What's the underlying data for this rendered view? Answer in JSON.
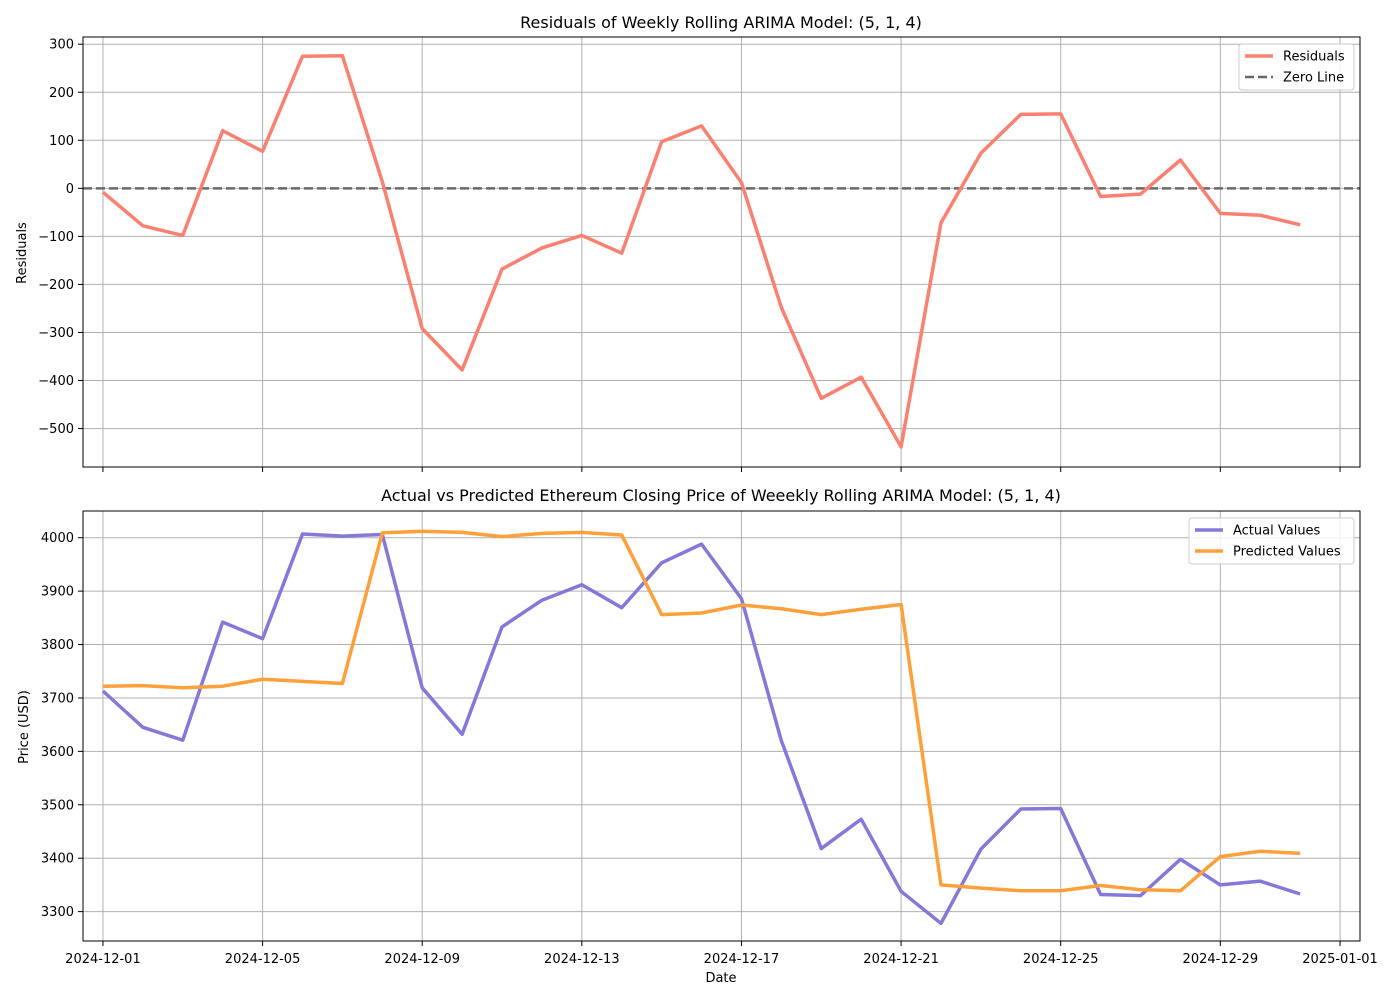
{
  "chart_data": [
    {
      "type": "line",
      "title": "Residuals of Weekly Rolling ARIMA Model: (5, 1, 4)",
      "xlabel": "",
      "ylabel": "Residuals",
      "x": [
        "2024-12-01",
        "2024-12-02",
        "2024-12-03",
        "2024-12-04",
        "2024-12-05",
        "2024-12-06",
        "2024-12-07",
        "2024-12-08",
        "2024-12-09",
        "2024-12-10",
        "2024-12-11",
        "2024-12-12",
        "2024-12-13",
        "2024-12-14",
        "2024-12-15",
        "2024-12-16",
        "2024-12-17",
        "2024-12-18",
        "2024-12-19",
        "2024-12-20",
        "2024-12-21",
        "2024-12-22",
        "2024-12-23",
        "2024-12-24",
        "2024-12-25",
        "2024-12-26",
        "2024-12-27",
        "2024-12-28",
        "2024-12-29",
        "2024-12-30",
        "2024-12-31"
      ],
      "xticks": [
        "2024-12-01",
        "2024-12-05",
        "2024-12-09",
        "2024-12-13",
        "2024-12-17",
        "2024-12-21",
        "2024-12-25",
        "2024-12-29",
        "2025-01-01"
      ],
      "xtick_labels_visible": false,
      "xlim": [
        "2024-11-30T12:00",
        "2025-01-01T12:00"
      ],
      "ylim": [
        -580,
        315
      ],
      "yticks": [
        -500,
        -400,
        -300,
        -200,
        -100,
        0,
        100,
        200,
        300
      ],
      "ytick_labels": [
        "−500",
        "−400",
        "−300",
        "−200",
        "−100",
        "0",
        "100",
        "200",
        "300"
      ],
      "grid": true,
      "legend_position": "top-right",
      "series": [
        {
          "name": "Residuals",
          "style": "solid",
          "color": "#fa8072",
          "values": [
            -8,
            -78,
            -98,
            120,
            77,
            275,
            276,
            14,
            -292,
            -378,
            -168,
            -124,
            -98,
            -135,
            97,
            130,
            12,
            -248,
            -437,
            -393,
            -538,
            -72,
            73,
            154,
            155,
            -17,
            -12,
            59,
            -52,
            -56,
            -76
          ]
        },
        {
          "name": "Zero Line",
          "style": "dashed",
          "color": "#696969",
          "constant": 0
        }
      ]
    },
    {
      "type": "line",
      "title": "Actual vs Predicted Ethereum Closing Price of Weeekly Rolling ARIMA Model: (5, 1, 4)",
      "xlabel": "Date",
      "ylabel": "Price (USD)",
      "x": [
        "2024-12-01",
        "2024-12-02",
        "2024-12-03",
        "2024-12-04",
        "2024-12-05",
        "2024-12-06",
        "2024-12-07",
        "2024-12-08",
        "2024-12-09",
        "2024-12-10",
        "2024-12-11",
        "2024-12-12",
        "2024-12-13",
        "2024-12-14",
        "2024-12-15",
        "2024-12-16",
        "2024-12-17",
        "2024-12-18",
        "2024-12-19",
        "2024-12-20",
        "2024-12-21",
        "2024-12-22",
        "2024-12-23",
        "2024-12-24",
        "2024-12-25",
        "2024-12-26",
        "2024-12-27",
        "2024-12-28",
        "2024-12-29",
        "2024-12-30",
        "2024-12-31"
      ],
      "xticks": [
        "2024-12-01",
        "2024-12-05",
        "2024-12-09",
        "2024-12-13",
        "2024-12-17",
        "2024-12-21",
        "2024-12-25",
        "2024-12-29",
        "2025-01-01"
      ],
      "xtick_labels_visible": true,
      "xlim": [
        "2024-11-30T12:00",
        "2025-01-01T12:00"
      ],
      "ylim": [
        3245,
        4050
      ],
      "yticks": [
        3300,
        3400,
        3500,
        3600,
        3700,
        3800,
        3900,
        4000
      ],
      "ytick_labels": [
        "3300",
        "3400",
        "3500",
        "3600",
        "3700",
        "3800",
        "3900",
        "4000"
      ],
      "grid": true,
      "legend_position": "top-right",
      "series": [
        {
          "name": "Actual Values",
          "style": "solid",
          "color": "#8479d9",
          "values": [
            3713,
            3645,
            3621,
            3842,
            3811,
            4007,
            4003,
            4006,
            3719,
            3632,
            3833,
            3883,
            3912,
            3869,
            3953,
            3988,
            3886,
            3620,
            3418,
            3473,
            3338,
            3278,
            3417,
            3492,
            3493,
            3332,
            3330,
            3398,
            3350,
            3357,
            3333
          ]
        },
        {
          "name": "Predicted Values",
          "style": "solid",
          "color": "#ffa03a",
          "values": [
            3722,
            3723,
            3719,
            3722,
            3735,
            3731,
            3727,
            4009,
            4012,
            4010,
            4002,
            4008,
            4010,
            4005,
            3856,
            3859,
            3874,
            3867,
            3856,
            3866,
            3875,
            3350,
            3344,
            3339,
            3339,
            3349,
            3341,
            3339,
            3403,
            3413,
            3409
          ]
        }
      ]
    }
  ]
}
